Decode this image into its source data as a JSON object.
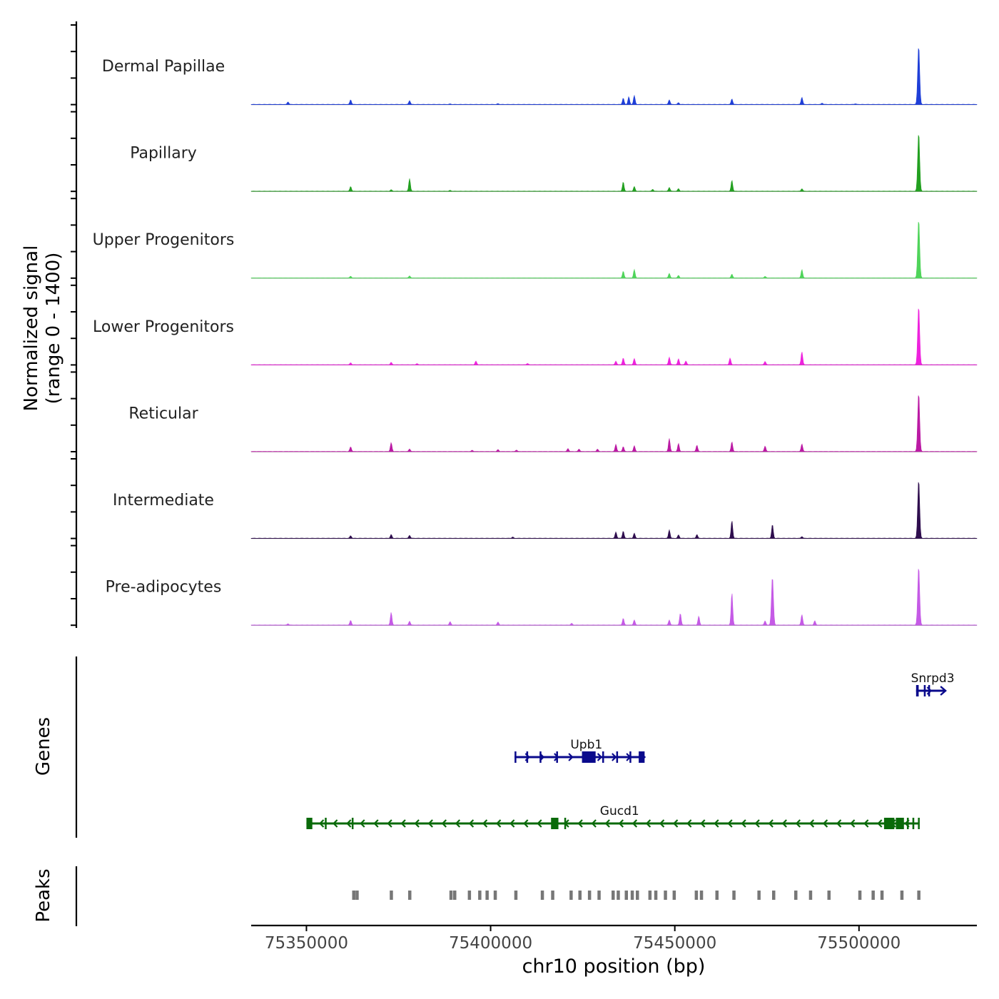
{
  "chart_data": {
    "type": "area",
    "title": "",
    "ylabel_line1": "Normalized signal",
    "ylabel_line2": "(range 0 - 1400)",
    "signal_range": [
      0,
      1400
    ],
    "xlabel": "chr10 position (bp)",
    "xlim": [
      75335000,
      75532000
    ],
    "x_ticks": [
      75350000,
      75400000,
      75450000,
      75500000
    ],
    "x_tick_labels": [
      "75350000",
      "75400000",
      "75450000",
      "75500000"
    ],
    "tracks": [
      {
        "name": "Dermal Papillae",
        "color": "#1f3fd8",
        "peaks": [
          [
            75345000,
            60
          ],
          [
            75362000,
            110
          ],
          [
            75378000,
            90
          ],
          [
            75389000,
            12
          ],
          [
            75402000,
            18
          ],
          [
            75436000,
            150
          ],
          [
            75437500,
            180
          ],
          [
            75439000,
            210
          ],
          [
            75448500,
            110
          ],
          [
            75451000,
            40
          ],
          [
            75465500,
            130
          ],
          [
            75484500,
            170
          ],
          [
            75490000,
            30
          ],
          [
            75499000,
            15
          ],
          [
            75516200,
            1400
          ]
        ]
      },
      {
        "name": "Papillary",
        "color": "#22a020",
        "peaks": [
          [
            75362000,
            110
          ],
          [
            75373000,
            35
          ],
          [
            75378000,
            300
          ],
          [
            75389000,
            20
          ],
          [
            75436000,
            220
          ],
          [
            75439000,
            110
          ],
          [
            75444000,
            45
          ],
          [
            75448500,
            90
          ],
          [
            75451000,
            60
          ],
          [
            75465500,
            260
          ],
          [
            75484500,
            60
          ],
          [
            75516200,
            1400
          ]
        ]
      },
      {
        "name": "Upper Progenitors",
        "color": "#4fd45a",
        "peaks": [
          [
            75362000,
            40
          ],
          [
            75378000,
            50
          ],
          [
            75436000,
            160
          ],
          [
            75439000,
            200
          ],
          [
            75448500,
            110
          ],
          [
            75451000,
            60
          ],
          [
            75465500,
            90
          ],
          [
            75474500,
            40
          ],
          [
            75484500,
            200
          ],
          [
            75516200,
            1400
          ]
        ]
      },
      {
        "name": "Lower Progenitors",
        "color": "#ee22dd",
        "peaks": [
          [
            75362000,
            45
          ],
          [
            75373000,
            55
          ],
          [
            75380000,
            25
          ],
          [
            75396000,
            85
          ],
          [
            75410000,
            30
          ],
          [
            75434000,
            85
          ],
          [
            75436000,
            160
          ],
          [
            75439000,
            145
          ],
          [
            75448500,
            180
          ],
          [
            75451000,
            140
          ],
          [
            75453000,
            90
          ],
          [
            75465000,
            155
          ],
          [
            75474500,
            80
          ],
          [
            75484500,
            310
          ],
          [
            75516200,
            1400
          ]
        ]
      },
      {
        "name": "Reticular",
        "color": "#bb1aa4",
        "peaks": [
          [
            75362000,
            110
          ],
          [
            75373000,
            210
          ],
          [
            75378000,
            60
          ],
          [
            75395000,
            30
          ],
          [
            75402000,
            45
          ],
          [
            75407000,
            35
          ],
          [
            75421000,
            70
          ],
          [
            75424000,
            60
          ],
          [
            75429000,
            55
          ],
          [
            75434000,
            170
          ],
          [
            75436000,
            115
          ],
          [
            75439000,
            135
          ],
          [
            75448500,
            310
          ],
          [
            75451000,
            190
          ],
          [
            75456000,
            150
          ],
          [
            75465500,
            230
          ],
          [
            75474500,
            130
          ],
          [
            75484500,
            180
          ],
          [
            75516200,
            1400
          ]
        ]
      },
      {
        "name": "Intermediate",
        "color": "#2f0e4e",
        "peaks": [
          [
            75362000,
            60
          ],
          [
            75373000,
            90
          ],
          [
            75378000,
            70
          ],
          [
            75406000,
            30
          ],
          [
            75434000,
            150
          ],
          [
            75436000,
            170
          ],
          [
            75439000,
            120
          ],
          [
            75448500,
            200
          ],
          [
            75451000,
            80
          ],
          [
            75456000,
            90
          ],
          [
            75465500,
            420
          ],
          [
            75476500,
            330
          ],
          [
            75484500,
            40
          ],
          [
            75516200,
            1400
          ]
        ]
      },
      {
        "name": "Pre-adipocytes",
        "color": "#c55ae6",
        "peaks": [
          [
            75345000,
            30
          ],
          [
            75362000,
            110
          ],
          [
            75373000,
            300
          ],
          [
            75378000,
            90
          ],
          [
            75389000,
            80
          ],
          [
            75402000,
            70
          ],
          [
            75422000,
            40
          ],
          [
            75436000,
            160
          ],
          [
            75439000,
            120
          ],
          [
            75448500,
            120
          ],
          [
            75451500,
            280
          ],
          [
            75456500,
            210
          ],
          [
            75465500,
            770
          ],
          [
            75474500,
            100
          ],
          [
            75476500,
            1150
          ],
          [
            75484500,
            250
          ],
          [
            75488000,
            100
          ],
          [
            75516200,
            1400
          ]
        ]
      }
    ],
    "genes": [
      {
        "name": "Snrpd3",
        "strand": "+",
        "color": "#0a0a8c",
        "start": 75515500,
        "end": 75523500,
        "exons": [
          [
            75515500,
            75516200
          ],
          [
            75517600,
            75518100
          ],
          [
            75518800,
            75519200
          ]
        ]
      },
      {
        "name": "Upb1",
        "strand": "+",
        "color": "#0a0a8c",
        "start": 75406500,
        "end": 75441800,
        "exons": [
          [
            75406500,
            75406900
          ],
          [
            75409700,
            75410100
          ],
          [
            75413300,
            75413700
          ],
          [
            75417800,
            75418200
          ],
          [
            75424800,
            75428500
          ],
          [
            75430300,
            75430700
          ],
          [
            75434100,
            75434500
          ],
          [
            75437700,
            75438100
          ],
          [
            75440200,
            75441800
          ]
        ]
      },
      {
        "name": "Gucd1",
        "strand": "-",
        "color": "#0a6a0a",
        "start": 75350000,
        "end": 75516300,
        "exons": [
          [
            75350000,
            75351600
          ],
          [
            75355000,
            75355300
          ],
          [
            75362300,
            75362600
          ],
          [
            75416400,
            75418400
          ],
          [
            75420000,
            75420300
          ],
          [
            75506800,
            75509600
          ],
          [
            75510000,
            75512200
          ],
          [
            75513000,
            75513500
          ],
          [
            75514500,
            75515000
          ],
          [
            75516000,
            75516300
          ]
        ]
      }
    ],
    "genes_label": "Genes",
    "peaks_label": "Peaks",
    "peak_regions": [
      75362800,
      75363700,
      75373000,
      75378000,
      75389200,
      75390200,
      75394200,
      75397000,
      75399000,
      75401200,
      75406800,
      75414000,
      75416800,
      75421800,
      75424200,
      75426800,
      75429400,
      75433200,
      75434600,
      75436800,
      75438400,
      75439800,
      75443200,
      75444800,
      75447400,
      75449800,
      75455800,
      75457200,
      75461400,
      75466000,
      75472800,
      75476800,
      75482800,
      75486800,
      75491800,
      75500200,
      75503800,
      75506200,
      75511600,
      75516200
    ]
  }
}
